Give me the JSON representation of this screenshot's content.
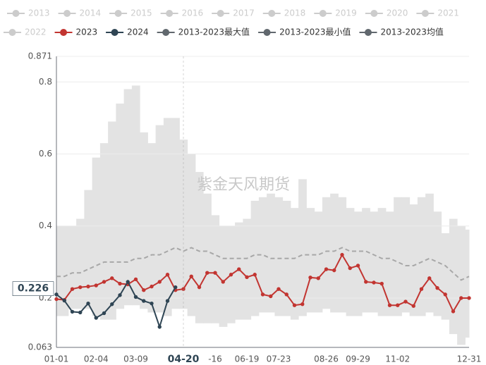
{
  "chart_data": {
    "type": "line",
    "watermark": "紫金天风期货",
    "categories": [
      "01-01",
      null,
      null,
      null,
      null,
      "02-04",
      null,
      null,
      null,
      null,
      "03-09",
      null,
      null,
      null,
      null,
      null,
      "04-20",
      null,
      null,
      null,
      "-16",
      null,
      null,
      null,
      "06-19",
      null,
      null,
      null,
      "07-23",
      null,
      null,
      null,
      null,
      null,
      "08-26",
      null,
      null,
      null,
      "09-29",
      null,
      null,
      null,
      null,
      "11-02",
      null,
      null,
      null,
      null,
      null,
      null,
      null,
      null,
      "12-31"
    ],
    "ylim": [
      0.063,
      0.871
    ],
    "yticks": [
      0.063,
      0.2,
      0.4,
      0.6,
      0.8,
      0.871
    ],
    "grid": true,
    "pointer": {
      "x_index": 16,
      "y": 0.226
    },
    "series": [
      {
        "name": "2013",
        "color": "#cccccc",
        "visible": false
      },
      {
        "name": "2014",
        "color": "#cccccc",
        "visible": false
      },
      {
        "name": "2015",
        "color": "#cccccc",
        "visible": false
      },
      {
        "name": "2016",
        "color": "#cccccc",
        "visible": false
      },
      {
        "name": "2017",
        "color": "#cccccc",
        "visible": false
      },
      {
        "name": "2018",
        "color": "#cccccc",
        "visible": false
      },
      {
        "name": "2019",
        "color": "#cccccc",
        "visible": false
      },
      {
        "name": "2020",
        "color": "#cccccc",
        "visible": false
      },
      {
        "name": "2021",
        "color": "#cccccc",
        "visible": false
      },
      {
        "name": "2022",
        "color": "#cccccc",
        "visible": false
      },
      {
        "name": "2023",
        "color": "#c23531",
        "visible": true,
        "style": "line",
        "values": [
          0.197,
          0.195,
          0.225,
          0.23,
          0.232,
          0.235,
          0.245,
          0.255,
          0.24,
          0.238,
          0.252,
          0.222,
          0.232,
          0.245,
          0.265,
          0.222,
          0.225,
          0.26,
          0.23,
          0.27,
          0.27,
          0.245,
          0.265,
          0.28,
          0.258,
          0.265,
          0.21,
          0.205,
          0.225,
          0.21,
          0.18,
          0.183,
          0.257,
          0.255,
          0.28,
          0.277,
          0.32,
          0.283,
          0.29,
          0.245,
          0.243,
          0.24,
          0.18,
          0.18,
          0.19,
          0.178,
          0.225,
          0.255,
          0.228,
          0.21,
          0.163,
          0.2,
          0.2
        ]
      },
      {
        "name": "2024",
        "color": "#2f4554",
        "visible": true,
        "style": "line",
        "values": [
          0.21,
          0.193,
          0.162,
          0.16,
          0.185,
          0.145,
          0.158,
          0.183,
          0.208,
          0.245,
          0.203,
          0.192,
          0.185,
          0.12,
          0.192,
          0.23,
          null,
          null,
          null,
          null,
          null,
          null,
          null,
          null,
          null,
          null,
          null,
          null,
          null,
          null,
          null,
          null,
          null,
          null,
          null,
          null,
          null,
          null,
          null,
          null,
          null,
          null,
          null,
          null,
          null,
          null,
          null,
          null,
          null,
          null,
          null,
          null,
          null
        ]
      },
      {
        "name": "2013-2023最大值",
        "color": "#61686e",
        "visible": true,
        "style": "band-top",
        "values": [
          0.4,
          0.4,
          0.4,
          0.42,
          0.5,
          0.59,
          0.63,
          0.69,
          0.74,
          0.78,
          0.79,
          0.66,
          0.63,
          0.68,
          0.7,
          0.7,
          0.64,
          0.6,
          0.55,
          0.49,
          0.43,
          0.4,
          0.4,
          0.41,
          0.42,
          0.47,
          0.48,
          0.49,
          0.48,
          0.47,
          0.45,
          0.53,
          0.45,
          0.44,
          0.48,
          0.49,
          0.48,
          0.45,
          0.44,
          0.45,
          0.44,
          0.45,
          0.44,
          0.48,
          0.48,
          0.46,
          0.48,
          0.49,
          0.44,
          0.38,
          0.42,
          0.4,
          0.39
        ]
      },
      {
        "name": "2013-2023最小值",
        "color": "#61686e",
        "visible": true,
        "style": "band-bottom",
        "values": [
          0.15,
          0.15,
          0.17,
          0.17,
          0.17,
          0.15,
          0.14,
          0.14,
          0.17,
          0.18,
          0.18,
          0.17,
          0.16,
          0.16,
          0.15,
          0.17,
          0.17,
          0.15,
          0.13,
          0.13,
          0.13,
          0.12,
          0.13,
          0.14,
          0.14,
          0.15,
          0.16,
          0.16,
          0.15,
          0.15,
          0.14,
          0.15,
          0.16,
          0.16,
          0.17,
          0.16,
          0.16,
          0.15,
          0.15,
          0.16,
          0.16,
          0.15,
          0.15,
          0.15,
          0.16,
          0.15,
          0.15,
          0.16,
          0.15,
          0.14,
          0.1,
          0.07,
          0.09
        ]
      },
      {
        "name": "2013-2023均值",
        "color": "#61686e",
        "visible": true,
        "style": "dashed",
        "values": [
          0.26,
          0.26,
          0.27,
          0.27,
          0.28,
          0.29,
          0.3,
          0.3,
          0.3,
          0.3,
          0.31,
          0.31,
          0.32,
          0.32,
          0.33,
          0.34,
          0.33,
          0.34,
          0.33,
          0.33,
          0.32,
          0.31,
          0.31,
          0.31,
          0.31,
          0.32,
          0.32,
          0.31,
          0.31,
          0.31,
          0.31,
          0.32,
          0.32,
          0.32,
          0.33,
          0.33,
          0.34,
          0.33,
          0.33,
          0.33,
          0.32,
          0.31,
          0.31,
          0.3,
          0.29,
          0.29,
          0.3,
          0.31,
          0.3,
          0.29,
          0.27,
          0.25,
          0.26
        ]
      }
    ]
  }
}
